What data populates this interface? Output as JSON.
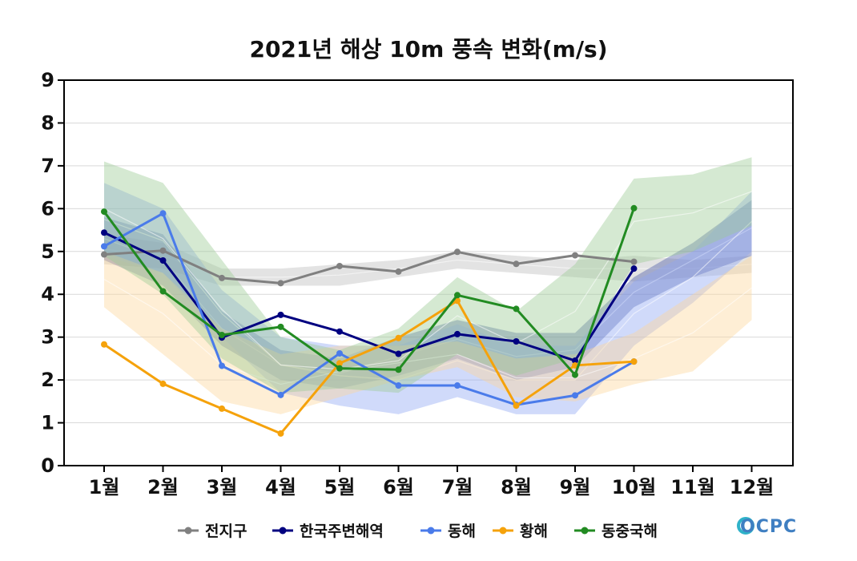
{
  "chart_data": {
    "type": "line",
    "title": "2021년 해상 10m 풍속 변화(m/s)",
    "xlabel": "",
    "ylabel": "",
    "categories": [
      "1월",
      "2월",
      "3월",
      "4월",
      "5월",
      "6월",
      "7월",
      "8월",
      "9월",
      "10월",
      "11월",
      "12월"
    ],
    "ylim": [
      0,
      9
    ],
    "yticks": [
      0,
      1,
      2,
      3,
      4,
      5,
      6,
      7,
      8,
      9
    ],
    "grid": true,
    "legend_position": "bottom",
    "series": [
      {
        "name": "전지구",
        "color": "#808080",
        "values": [
          4.93,
          5.02,
          4.38,
          4.26,
          4.66,
          4.53,
          4.99,
          4.71,
          4.91,
          4.76,
          null,
          null
        ],
        "band_low": [
          4.7,
          4.6,
          4.2,
          4.2,
          4.2,
          4.4,
          4.6,
          4.5,
          4.4,
          4.3,
          4.4,
          4.5
        ],
        "band_high": [
          5.4,
          5.2,
          4.6,
          4.6,
          4.7,
          4.8,
          5.0,
          4.9,
          4.8,
          4.9,
          4.8,
          4.9
        ],
        "band_color": "#bdbdbd"
      },
      {
        "name": "한국주변해역",
        "color": "#000080",
        "values": [
          5.44,
          4.79,
          2.99,
          3.52,
          3.13,
          2.61,
          3.07,
          2.9,
          2.45,
          4.6,
          null,
          null
        ],
        "band_low": [
          4.8,
          4.2,
          2.8,
          2.0,
          1.8,
          2.1,
          2.5,
          2.0,
          2.3,
          3.7,
          4.4,
          4.9
        ],
        "band_high": [
          5.8,
          5.4,
          3.6,
          2.7,
          2.5,
          3.0,
          3.4,
          3.1,
          3.1,
          4.4,
          5.2,
          6.2
        ],
        "band_color": "#4d5aa8"
      },
      {
        "name": "동해",
        "color": "#4a7bea",
        "values": [
          5.12,
          5.89,
          2.33,
          1.65,
          2.62,
          1.87,
          1.87,
          1.42,
          1.64,
          2.43,
          null,
          null
        ],
        "band_low": [
          4.9,
          4.5,
          3.0,
          1.7,
          1.4,
          1.2,
          1.6,
          1.2,
          1.2,
          2.8,
          3.8,
          5.0
        ],
        "band_high": [
          6.6,
          6.0,
          4.1,
          3.0,
          2.8,
          2.8,
          3.3,
          2.8,
          2.8,
          4.3,
          5.0,
          6.4
        ],
        "band_color": "#8fa8f2"
      },
      {
        "name": "황해",
        "color": "#f5a20b",
        "values": [
          2.83,
          1.91,
          1.33,
          0.75,
          2.39,
          2.98,
          3.85,
          1.4,
          2.34,
          2.43,
          null,
          null
        ],
        "band_low": [
          3.7,
          2.6,
          1.5,
          1.2,
          1.6,
          2.0,
          2.3,
          1.6,
          1.5,
          1.9,
          2.2,
          3.4
        ],
        "band_high": [
          5.0,
          4.5,
          3.2,
          2.6,
          2.8,
          2.8,
          2.9,
          2.5,
          2.6,
          3.1,
          4.0,
          4.9
        ],
        "band_color": "#fcd79b"
      },
      {
        "name": "동중국해",
        "color": "#228b22",
        "values": [
          5.93,
          4.07,
          3.05,
          3.24,
          2.27,
          2.24,
          3.98,
          3.66,
          2.12,
          6.01,
          null,
          null
        ],
        "band_low": [
          4.9,
          4.0,
          2.5,
          1.7,
          1.8,
          1.7,
          2.6,
          2.1,
          2.5,
          4.7,
          5.0,
          5.6
        ],
        "band_high": [
          7.1,
          6.6,
          4.8,
          3.0,
          2.7,
          3.2,
          4.4,
          3.6,
          4.7,
          6.7,
          6.8,
          7.2
        ],
        "band_color": "#9acb94"
      }
    ]
  },
  "logo_text": "OCPC"
}
